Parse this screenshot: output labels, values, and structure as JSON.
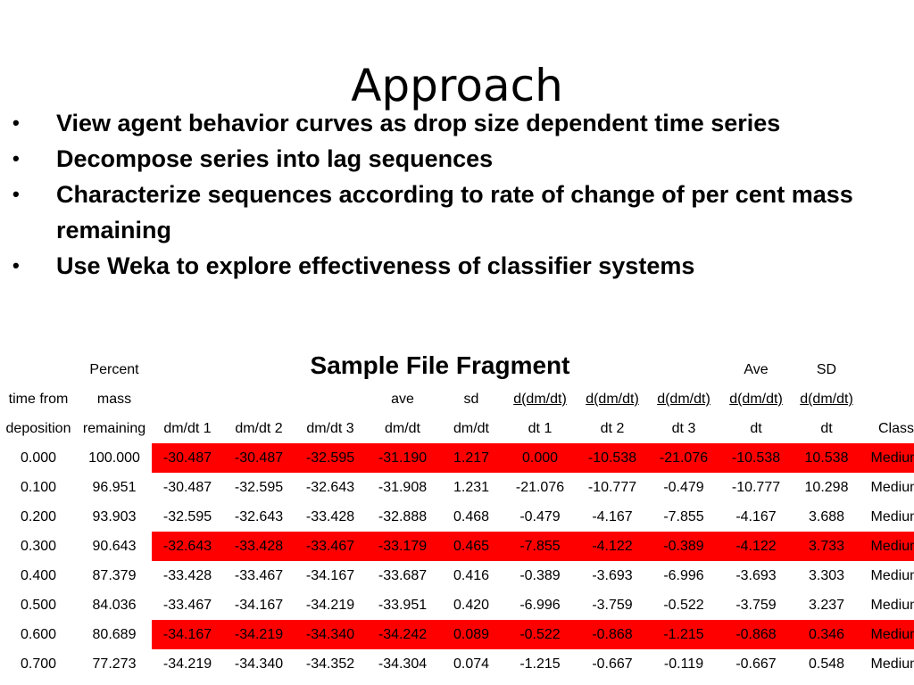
{
  "slide": {
    "title": "Approach",
    "bullets": [
      "View agent behavior curves as drop size dependent time series",
      "Decompose series into lag sequences",
      "Characterize sequences according to rate of change of per cent mass remaining",
      "Use Weka to explore effectiveness of  classifier systems"
    ],
    "bullet_symbol": "•",
    "fragment_title": "Sample File Fragment"
  },
  "table": {
    "headers": [
      [
        "",
        "time from",
        "deposition"
      ],
      [
        "Percent",
        "mass",
        "remaining"
      ],
      [
        "",
        "",
        "dm/dt 1"
      ],
      [
        "",
        "",
        "dm/dt 2"
      ],
      [
        "",
        "",
        "dm/dt  3"
      ],
      [
        "",
        "ave",
        "dm/dt"
      ],
      [
        "",
        "sd",
        "dm/dt"
      ],
      [
        "",
        "d(dm/dt)",
        "dt 1"
      ],
      [
        "",
        "d(dm/dt)",
        "dt 2"
      ],
      [
        "",
        "d(dm/dt)",
        "dt 3"
      ],
      [
        "Ave",
        "d(dm/dt)",
        "dt"
      ],
      [
        "SD",
        "d(dm/dt)",
        "dt"
      ],
      [
        "",
        "",
        "Class"
      ]
    ],
    "rows": [
      {
        "highlight": true,
        "cells": [
          "0.000",
          "100.000",
          "-30.487",
          "-30.487",
          "-32.595",
          "-31.190",
          "1.217",
          "0.000",
          "-10.538",
          "-21.076",
          "-10.538",
          "10.538",
          "Medium"
        ]
      },
      {
        "highlight": false,
        "cells": [
          "0.100",
          "96.951",
          "-30.487",
          "-32.595",
          "-32.643",
          "-31.908",
          "1.231",
          "-21.076",
          "-10.777",
          "-0.479",
          "-10.777",
          "10.298",
          "Medium"
        ]
      },
      {
        "highlight": false,
        "cells": [
          "0.200",
          "93.903",
          "-32.595",
          "-32.643",
          "-33.428",
          "-32.888",
          "0.468",
          "-0.479",
          "-4.167",
          "-7.855",
          "-4.167",
          "3.688",
          "Medium"
        ]
      },
      {
        "highlight": true,
        "cells": [
          "0.300",
          "90.643",
          "-32.643",
          "-33.428",
          "-33.467",
          "-33.179",
          "0.465",
          "-7.855",
          "-4.122",
          "-0.389",
          "-4.122",
          "3.733",
          "Medium"
        ]
      },
      {
        "highlight": false,
        "cells": [
          "0.400",
          "87.379",
          "-33.428",
          "-33.467",
          "-34.167",
          "-33.687",
          "0.416",
          "-0.389",
          "-3.693",
          "-6.996",
          "-3.693",
          "3.303",
          "Medium"
        ]
      },
      {
        "highlight": false,
        "cells": [
          "0.500",
          "84.036",
          "-33.467",
          "-34.167",
          "-34.219",
          "-33.951",
          "0.420",
          "-6.996",
          "-3.759",
          "-0.522",
          "-3.759",
          "3.237",
          "Medium"
        ]
      },
      {
        "highlight": true,
        "cells": [
          "0.600",
          "80.689",
          "-34.167",
          "-34.219",
          "-34.340",
          "-34.242",
          "0.089",
          "-0.522",
          "-0.868",
          "-1.215",
          "-0.868",
          "0.346",
          "Medium"
        ]
      },
      {
        "highlight": false,
        "cells": [
          "0.700",
          "77.273",
          "-34.219",
          "-34.340",
          "-34.352",
          "-34.304",
          "0.074",
          "-1.215",
          "-0.667",
          "-0.119",
          "-0.667",
          "0.548",
          "Medium"
        ]
      }
    ],
    "colors": {
      "highlight": "#ff0000",
      "text": "#000000",
      "background": "#ffffff"
    }
  }
}
